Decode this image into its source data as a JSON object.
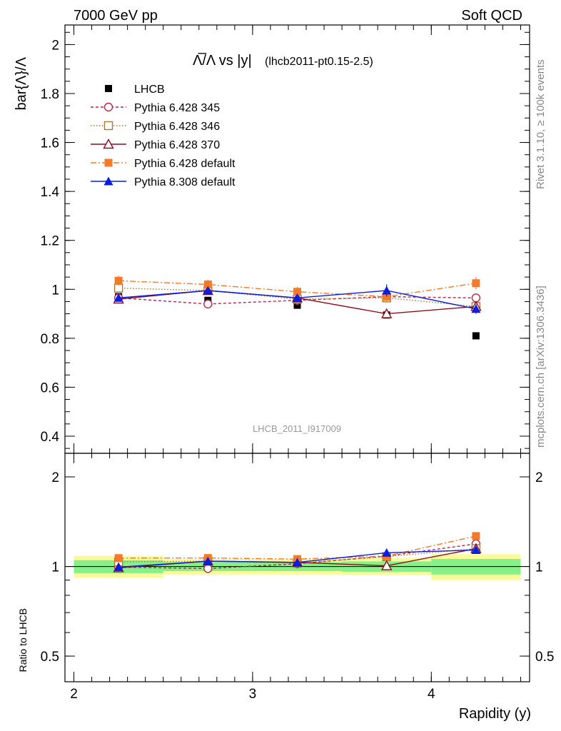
{
  "header": {
    "left": "7000 GeV pp",
    "right": "Soft QCD"
  },
  "side": {
    "rivet": "Rivet 3.1.10, ≥ 100k events",
    "source": "mcplots.cern.ch [arXiv:1306.3436]"
  },
  "chart_data": {
    "type": "line",
    "title_main": "Λ̅/Λ vs |y|",
    "title_sub": "(lhcb2011-pt0.15-2.5)",
    "ylabel": "bar{Λ}/Λ",
    "xlabel": "Rapidity (y)",
    "ratio_ylabel": "Ratio to LHCB",
    "watermark": "LHCB_2011_I917009",
    "x_ticks": [
      "2",
      "3",
      "4"
    ],
    "main_y_ticks": [
      "0.4",
      "0.6",
      "0.8",
      "1",
      "1.2",
      "1.4",
      "1.6",
      "1.8",
      "2"
    ],
    "ratio_y_ticks": [
      "0.5",
      "1",
      "2"
    ],
    "xlim": [
      1.95,
      4.55
    ],
    "ylim": [
      0.33,
      2.08
    ],
    "ratio_ylim": [
      0.41,
      2.4
    ],
    "ratio_log": true,
    "x": [
      2.25,
      2.75,
      3.25,
      3.75,
      4.25
    ],
    "bin_edges": [
      2.0,
      2.5,
      3.0,
      3.5,
      4.0,
      4.5
    ],
    "data": {
      "name": "LHCB",
      "color": "#000000",
      "values": [
        0.97,
        0.955,
        0.935,
        0.895,
        0.81
      ]
    },
    "band_inner": [
      0.05,
      0.035,
      0.035,
      0.04,
      0.06
    ],
    "band_outer": [
      0.085,
      0.06,
      0.06,
      0.065,
      0.1
    ],
    "series": [
      {
        "name": "Pythia 6.428 345",
        "color": "#b5284a",
        "dash": "4,3",
        "marker": "circle-open",
        "values": [
          0.965,
          0.94,
          0.955,
          0.97,
          0.965
        ],
        "err": [
          0.01,
          0.012,
          0.01,
          0.015,
          0.015
        ]
      },
      {
        "name": "Pythia 6.428 346",
        "color": "#a37a35",
        "dash": "1.5,2.5",
        "marker": "square-open",
        "values": [
          1.005,
          0.995,
          0.96,
          0.965,
          0.93
        ],
        "err": [
          0.01,
          0.012,
          0.01,
          0.015,
          0.015
        ]
      },
      {
        "name": "Pythia 6.428 370",
        "color": "#8b0f1f",
        "dash": "",
        "marker": "triangle-open",
        "values": [
          0.96,
          0.995,
          0.965,
          0.9,
          0.93
        ],
        "err": [
          0.01,
          0.012,
          0.01,
          0.015,
          0.015
        ]
      },
      {
        "name": "Pythia 6.428 default",
        "color": "#f47a2a",
        "dash": "8,3,2,3",
        "marker": "square-filled",
        "values": [
          1.035,
          1.02,
          0.99,
          0.97,
          1.025
        ],
        "err": [
          0.02,
          0.02,
          0.02,
          0.02,
          0.025
        ]
      },
      {
        "name": "Pythia 8.308 default",
        "color": "#0b1ee0",
        "dash": "",
        "marker": "triangle-filled",
        "values": [
          0.965,
          0.995,
          0.965,
          0.995,
          0.92
        ],
        "err": [
          0.01,
          0.015,
          0.012,
          0.025,
          0.02
        ]
      }
    ],
    "band_colors": {
      "inner": "#88f088",
      "outer": "#fafa9a"
    }
  }
}
